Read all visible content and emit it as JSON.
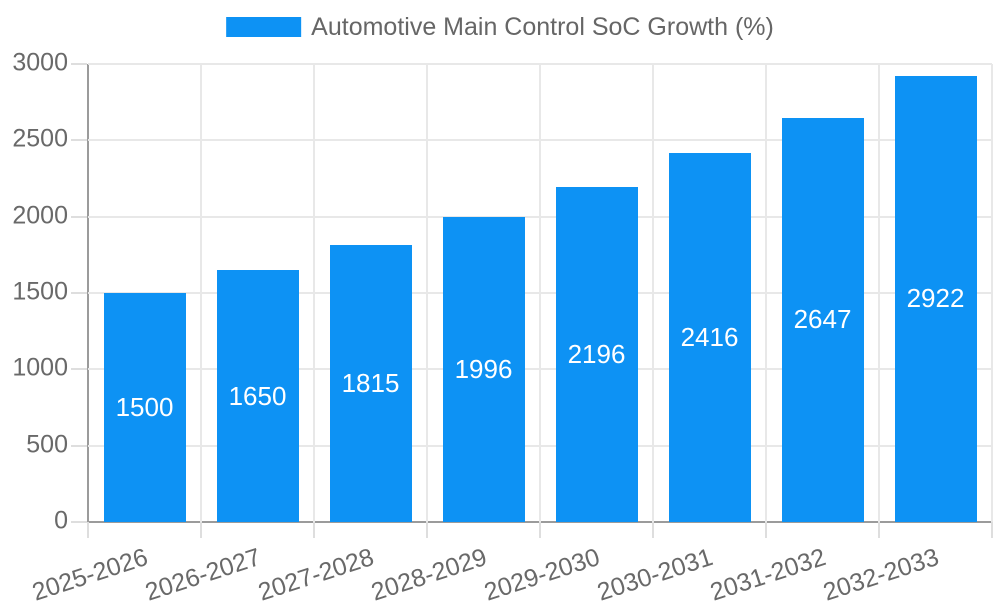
{
  "chart_data": {
    "type": "bar",
    "legend_label": "Automotive Main Control SoC Growth (%)",
    "legend_position": "top",
    "categories": [
      "2025-2026",
      "2026-2027",
      "2027-2028",
      "2028-2029",
      "2029-2030",
      "2030-2031",
      "2031-2032",
      "2032-2033"
    ],
    "values": [
      1500,
      1650,
      1815,
      1996,
      2196,
      2416,
      2647,
      2922
    ],
    "value_labels": [
      "1500",
      "1650",
      "1815",
      "1996",
      "2196",
      "2416",
      "2647",
      "2922"
    ],
    "value_label_position": "center-inside",
    "title": "",
    "xlabel": "",
    "ylabel": "",
    "ylim": [
      0,
      3000
    ],
    "yticks": [
      0,
      500,
      1000,
      1500,
      2000,
      2500,
      3000
    ],
    "grid": true,
    "colors": {
      "bar": "#0d92f4",
      "bar_value_text": "#ffffff",
      "axis_text": "#696969",
      "legend_text": "#666666",
      "gridline": "#e8e8e8",
      "axis_line": "#9b9b9b",
      "background": "#ffffff"
    }
  }
}
